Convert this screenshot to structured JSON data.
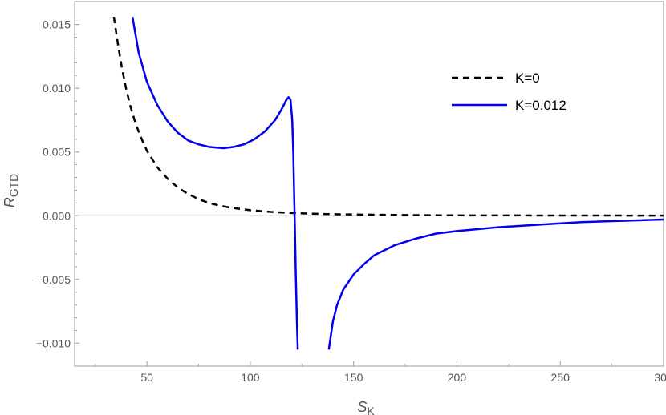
{
  "chart_data": {
    "type": "line",
    "xlabel": "S",
    "xlabel_sub": "K",
    "ylabel": "R",
    "ylabel_sub": "GTD",
    "xlim": [
      15,
      300
    ],
    "ylim": [
      -0.0118,
      0.0168
    ],
    "x_ticks": [
      50,
      100,
      150,
      200,
      250,
      300
    ],
    "x_tick_labels": [
      "50",
      "100",
      "150",
      "200",
      "250",
      "300"
    ],
    "y_ticks": [
      -0.01,
      -0.005,
      0.0,
      0.005,
      0.01,
      0.015
    ],
    "y_tick_labels": [
      "−0.010",
      "−0.005",
      "0.000",
      "0.005",
      "0.010",
      "0.015"
    ],
    "grid": false,
    "zero_line": true,
    "legend_position": "top-right",
    "series": [
      {
        "name": "K=0",
        "color": "#000000",
        "dash": "dashed",
        "segments": [
          [
            [
              34,
              0.0156
            ],
            [
              36,
              0.0134
            ],
            [
              38,
              0.0115
            ],
            [
              40,
              0.0099
            ],
            [
              42,
              0.0086
            ],
            [
              44,
              0.0075
            ],
            [
              46,
              0.0066
            ],
            [
              48,
              0.0058
            ],
            [
              50,
              0.0051
            ],
            [
              55,
              0.0038
            ],
            [
              60,
              0.0029
            ],
            [
              65,
              0.0022
            ],
            [
              70,
              0.0017
            ],
            [
              75,
              0.0013
            ],
            [
              80,
              0.001
            ],
            [
              85,
              0.0008
            ],
            [
              90,
              0.00064
            ],
            [
              100,
              0.00043
            ],
            [
              110,
              0.0003
            ],
            [
              120,
              0.00021
            ],
            [
              130,
              0.00016
            ],
            [
              140,
              0.00012
            ],
            [
              160,
              8e-05
            ],
            [
              180,
              5e-05
            ],
            [
              200,
              3e-05
            ],
            [
              250,
              1.5e-05
            ],
            [
              300,
              8e-06
            ]
          ]
        ]
      },
      {
        "name": "K=0.012",
        "color": "#0000ee",
        "dash": "solid",
        "segments": [
          [
            [
              43,
              0.0156
            ],
            [
              46,
              0.0128
            ],
            [
              50,
              0.0105
            ],
            [
              55,
              0.0087
            ],
            [
              60,
              0.0074
            ],
            [
              65,
              0.0065
            ],
            [
              70,
              0.0059
            ],
            [
              75,
              0.0056
            ],
            [
              80,
              0.0054
            ],
            [
              87,
              0.0053
            ],
            [
              92,
              0.0054
            ],
            [
              97,
              0.0056
            ],
            [
              102,
              0.006
            ],
            [
              107,
              0.0066
            ],
            [
              112,
              0.0075
            ],
            [
              115,
              0.0083
            ],
            [
              117.5,
              0.0091
            ],
            [
              118.5,
              0.0093
            ],
            [
              119.5,
              0.0091
            ],
            [
              120.3,
              0.0075
            ],
            [
              120.8,
              0.005
            ],
            [
              121.2,
              0.002
            ],
            [
              121.6,
              -0.001
            ],
            [
              122.0,
              -0.0045
            ],
            [
              122.5,
              -0.008
            ],
            [
              123,
              -0.0105
            ]
          ],
          [
            [
              138,
              -0.0105
            ],
            [
              140,
              -0.0083
            ],
            [
              142,
              -0.007
            ],
            [
              145,
              -0.0058
            ],
            [
              150,
              -0.0046
            ],
            [
              155,
              -0.0038
            ],
            [
              160,
              -0.0031
            ],
            [
              170,
              -0.0023
            ],
            [
              180,
              -0.0018
            ],
            [
              190,
              -0.0014
            ],
            [
              200,
              -0.0012
            ],
            [
              220,
              -0.0009
            ],
            [
              240,
              -0.0007
            ],
            [
              260,
              -0.0005
            ],
            [
              280,
              -0.0004
            ],
            [
              300,
              -0.0003
            ]
          ]
        ]
      }
    ]
  }
}
